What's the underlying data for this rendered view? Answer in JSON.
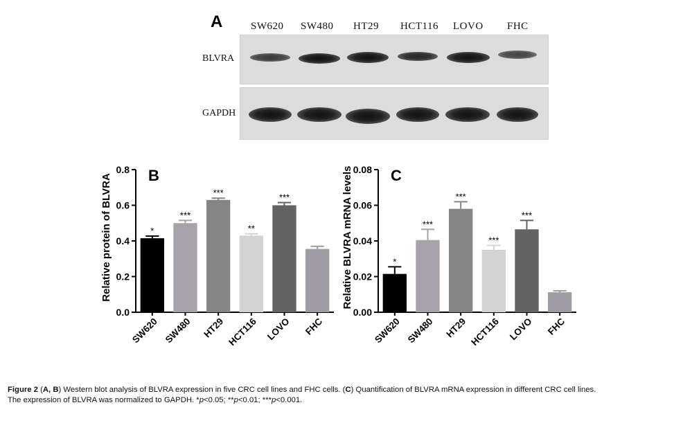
{
  "panelA": {
    "label": "A",
    "lanes": [
      "SW620",
      "SW480",
      "HT29",
      "HCT116",
      "LOVO",
      "FHC"
    ],
    "rows": [
      "BLVRA",
      "GAPDH"
    ]
  },
  "chart_data": [
    {
      "type": "bar",
      "panel_label": "B",
      "title": "",
      "xlabel": "",
      "ylabel": "Relative protein of BLVRA",
      "categories": [
        "SW620",
        "SW480",
        "HT29",
        "HCT116",
        "LOVO",
        "FHC"
      ],
      "values": [
        0.415,
        0.5,
        0.63,
        0.43,
        0.6,
        0.355
      ],
      "errors": [
        0.012,
        0.015,
        0.01,
        0.01,
        0.015,
        0.015
      ],
      "significance": [
        "*",
        "***",
        "***",
        "**",
        "***",
        ""
      ],
      "colors": [
        "#000000",
        "#a8a3ab",
        "#858585",
        "#d3d3d3",
        "#636363",
        "#a09ca3"
      ],
      "ylim": [
        0,
        0.8
      ],
      "yticks": [
        "0.0",
        "0.2",
        "0.4",
        "0.6",
        "0.8"
      ],
      "grid": false
    },
    {
      "type": "bar",
      "panel_label": "C",
      "title": "",
      "xlabel": "",
      "ylabel": "Relative BLVRA mRNA levels",
      "categories": [
        "SW620",
        "SW480",
        "HT29",
        "HCT116",
        "LOVO",
        "FHC"
      ],
      "values": [
        0.0215,
        0.0405,
        0.058,
        0.035,
        0.0465,
        0.0112
      ],
      "errors": [
        0.004,
        0.006,
        0.004,
        0.0025,
        0.005,
        0.0008
      ],
      "significance": [
        "*",
        "***",
        "***",
        "***",
        "***",
        ""
      ],
      "colors": [
        "#000000",
        "#a8a3ab",
        "#858585",
        "#d3d3d3",
        "#636363",
        "#a09ca3"
      ],
      "ylim": [
        0,
        0.08
      ],
      "yticks": [
        "0.00",
        "0.02",
        "0.04",
        "0.06",
        "0.08"
      ],
      "grid": false
    }
  ],
  "caption": {
    "fig": "Figure 2",
    "p1": " (",
    "a": "A",
    "c1": ", ",
    "b": "B",
    "p2": ") Western blot analysis of BLVRA expression in five CRC cell lines and FHC cells. (",
    "c": "C",
    "p3": ") Quantification of BLVRA mRNA expression in different CRC cell lines.",
    "line2a": "The expression of BLVRA was normalized to GAPDH. *",
    "p": "p",
    "line2b": "<0.05; **",
    "line2c": "<0.01; ***",
    "line2d": "<0.001."
  }
}
